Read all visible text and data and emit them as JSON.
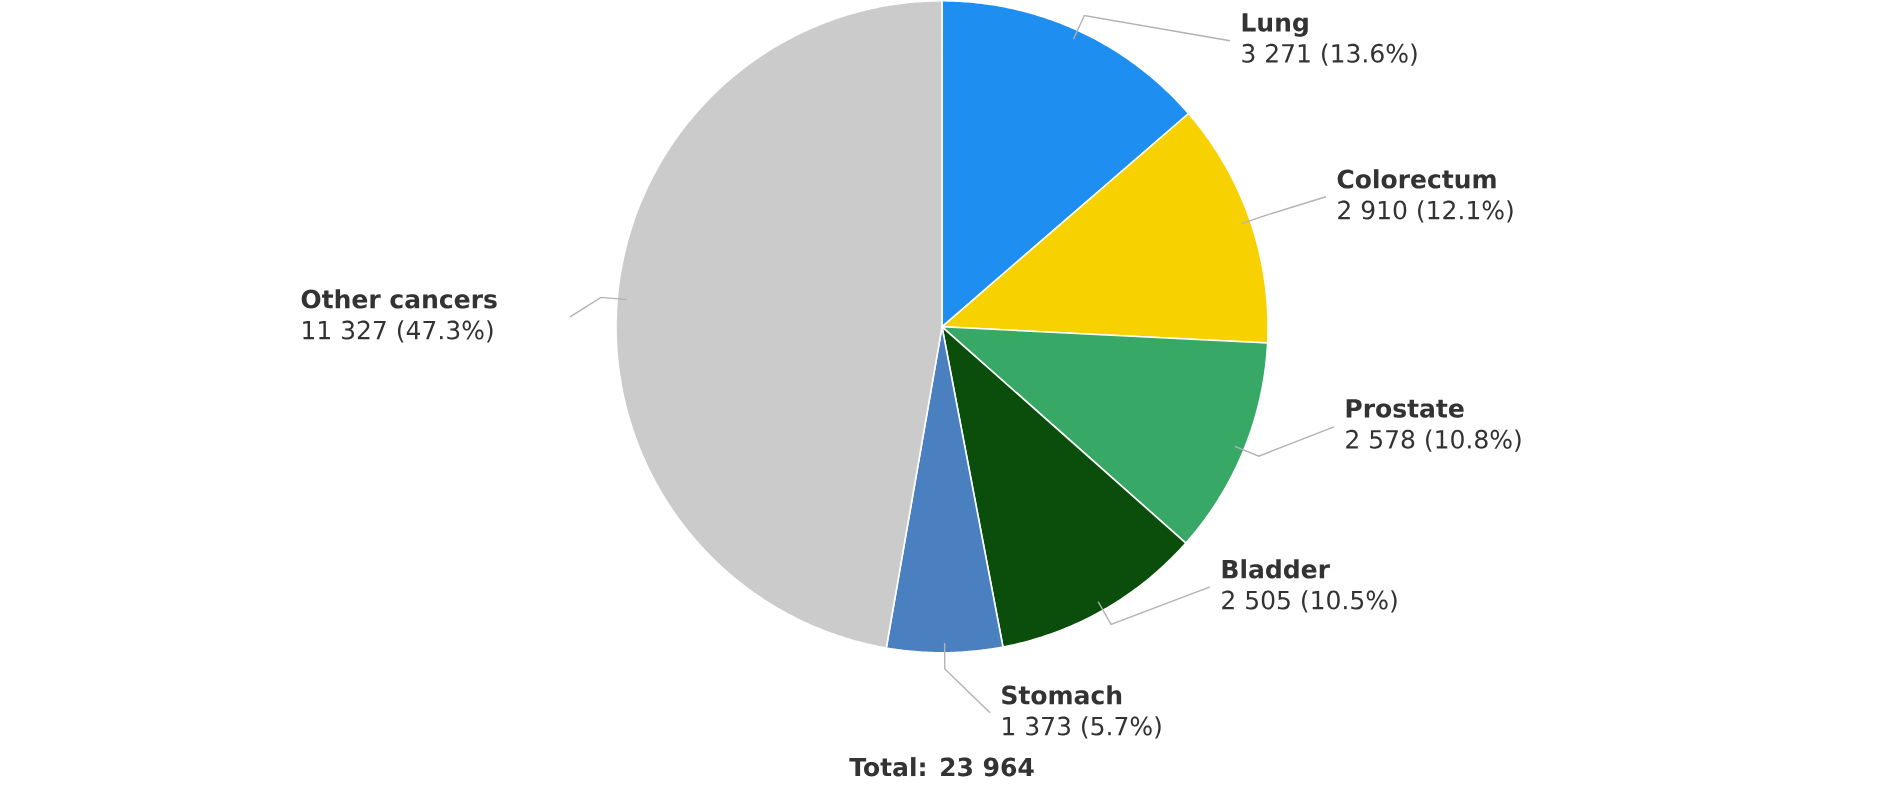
{
  "chart_data": {
    "type": "pie",
    "categories": [
      "Lung",
      "Colorectum",
      "Prostate",
      "Bladder",
      "Stomach",
      "Other cancers"
    ],
    "values": [
      3271,
      2910,
      2578,
      2505,
      1373,
      11327
    ],
    "value_labels": [
      "3 271 (13.6%)",
      "2 910 (12.1%)",
      "2 578 (10.8%)",
      "2 505 (10.5%)",
      "1 373 (5.7%)",
      "11 327 (47.3%)"
    ],
    "colors": [
      "#1e8ff0",
      "#f7d100",
      "#38a866",
      "#0b4d0b",
      "#4a80c0",
      "#cbcbcb"
    ],
    "annotations": [
      "Total: 23 964"
    ]
  }
}
